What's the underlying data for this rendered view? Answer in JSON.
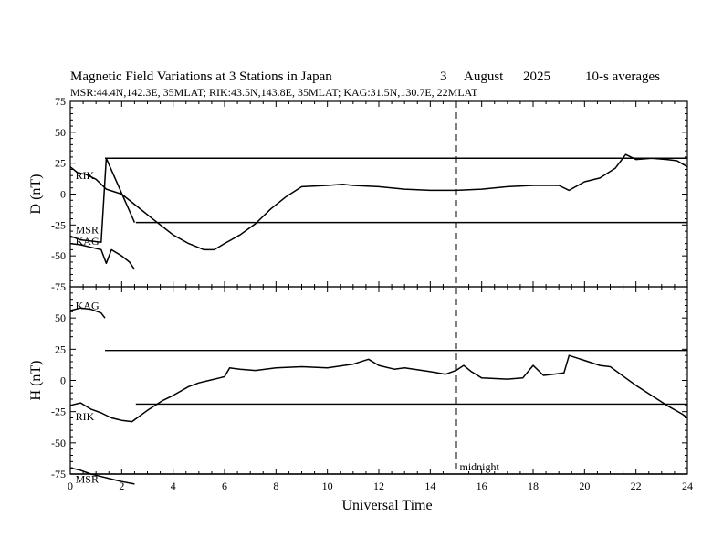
{
  "header": {
    "title": "Magnetic Field Variations at 3 Stations in Japan",
    "day": "3",
    "month": "August",
    "year": "2025",
    "averaging": "10-s averages",
    "stations": "MSR:44.4N,142.3E, 35MLAT;  RIK:43.5N,143.8E, 35MLAT;  KAG:31.5N,130.7E, 22MLAT"
  },
  "chart_data": {
    "type": "line",
    "xlabel": "Universal Time",
    "xlim": [
      0,
      24
    ],
    "xticks": [
      "0",
      "2",
      "4",
      "6",
      "8",
      "10",
      "12",
      "14",
      "16",
      "18",
      "20",
      "22",
      "24"
    ],
    "midnight": {
      "x": 15,
      "label": "midnight"
    },
    "panels": [
      {
        "ylabel": "D (nT)",
        "ylim": [
          -75,
          75
        ],
        "yticks": [
          "75",
          "50",
          "25",
          "0",
          "-25",
          "-50",
          "-75"
        ],
        "series": [
          {
            "name": "RIK",
            "x": [
              0,
              0.3,
              0.6,
              1.0,
              1.4,
              2.0,
              2.6,
              3.2,
              4.0,
              4.6,
              5.2,
              5.6,
              6.0,
              6.6,
              7.2,
              7.8,
              8.4,
              9.0,
              10.0,
              10.6,
              11.0,
              12.0,
              13.0,
              14.0,
              15.0,
              16.0,
              17.0,
              18.0,
              19.0,
              19.4,
              20.0,
              20.6,
              21.2,
              21.6,
              22.0,
              22.6,
              23.2,
              23.6,
              24.0
            ],
            "values": [
              22,
              17,
              16,
              12,
              4,
              0,
              -10,
              -20,
              -33,
              -40,
              -45,
              -45,
              -40,
              -33,
              -24,
              -12,
              -2,
              6,
              7,
              8,
              7,
              6,
              4,
              3,
              3,
              4,
              6,
              7,
              7,
              3,
              10,
              13,
              21,
              32,
              28,
              29,
              28,
              27,
              22
            ]
          },
          {
            "name": "MSR",
            "x": [
              0,
              0.4,
              0.8,
              1.2,
              1.4,
              2.5
            ],
            "values": [
              -34,
              -37,
              -38,
              -39,
              29,
              -23
            ]
          },
          {
            "name": "KAG",
            "x": [
              0,
              0.4,
              0.8,
              1.2,
              1.4,
              1.6,
              2.0,
              2.3,
              2.5
            ],
            "values": [
              -40,
              -41,
              -43,
              -45,
              -56,
              -45,
              -50,
              -55,
              -61
            ]
          }
        ],
        "labels": [
          {
            "text": "RIK",
            "x": 0.2,
            "y": 15
          },
          {
            "text": "MSR",
            "x": 0.2,
            "y": -29
          },
          {
            "text": "KAG",
            "x": 0.2,
            "y": -38
          }
        ],
        "hlines": [
          {
            "from": 1.35,
            "value": 29
          },
          {
            "from": 2.55,
            "value": -23
          }
        ]
      },
      {
        "ylabel": "H (nT)",
        "ylim": [
          -75,
          75
        ],
        "yticks": [
          "75",
          "50",
          "25",
          "0",
          "-25",
          "-50",
          "-75"
        ],
        "series": [
          {
            "name": "KAG",
            "x": [
              0,
              0.4,
              0.8,
              1.2,
              1.35
            ],
            "values": [
              56,
              58,
              57,
              54,
              50
            ]
          },
          {
            "name": "RIK",
            "x": [
              0,
              0.4,
              0.8,
              1.2,
              1.6,
              2.0,
              2.4,
              2.6,
              3.0,
              3.6,
              4.0,
              4.6,
              5.0,
              5.4,
              5.8,
              6.0,
              6.2,
              6.6,
              7.2,
              8.0,
              9.0,
              10.0,
              11.0,
              11.6,
              12.0,
              12.6,
              13.0,
              14.0,
              14.6,
              15.0,
              15.3,
              15.6,
              16.0,
              17.0,
              17.6,
              18.0,
              18.4,
              18.8,
              19.2,
              19.4,
              20.0,
              20.6,
              21.0,
              21.6,
              22.0,
              22.6,
              23.2,
              23.8,
              24.0
            ],
            "values": [
              -20,
              -18,
              -23,
              -26,
              -30,
              -32,
              -33,
              -30,
              -24,
              -16,
              -12,
              -5,
              -2,
              0,
              2,
              3,
              10,
              9,
              8,
              10,
              11,
              10,
              13,
              17,
              12,
              9,
              10,
              7,
              5,
              8,
              12,
              7,
              2,
              1,
              2,
              12,
              4,
              5,
              6,
              20,
              16,
              12,
              11,
              2,
              -4,
              -12,
              -20,
              -27,
              -30
            ]
          },
          {
            "name": "MSR",
            "x": [
              0,
              0.4,
              0.8,
              1.2,
              1.6,
              2.0,
              2.5
            ],
            "values": [
              -70,
              -72,
              -75,
              -77,
              -79,
              -81,
              -83
            ]
          }
        ],
        "labels": [
          {
            "text": "KAG",
            "x": 0.2,
            "y": 60
          },
          {
            "text": "RIK",
            "x": 0.2,
            "y": -29
          },
          {
            "text": "MSR",
            "x": 0.2,
            "y": -79
          }
        ],
        "hlines": [
          {
            "from": 1.35,
            "value": 24
          },
          {
            "from": 2.55,
            "value": -19
          },
          {
            "from": 0,
            "value": -75
          }
        ]
      }
    ]
  }
}
